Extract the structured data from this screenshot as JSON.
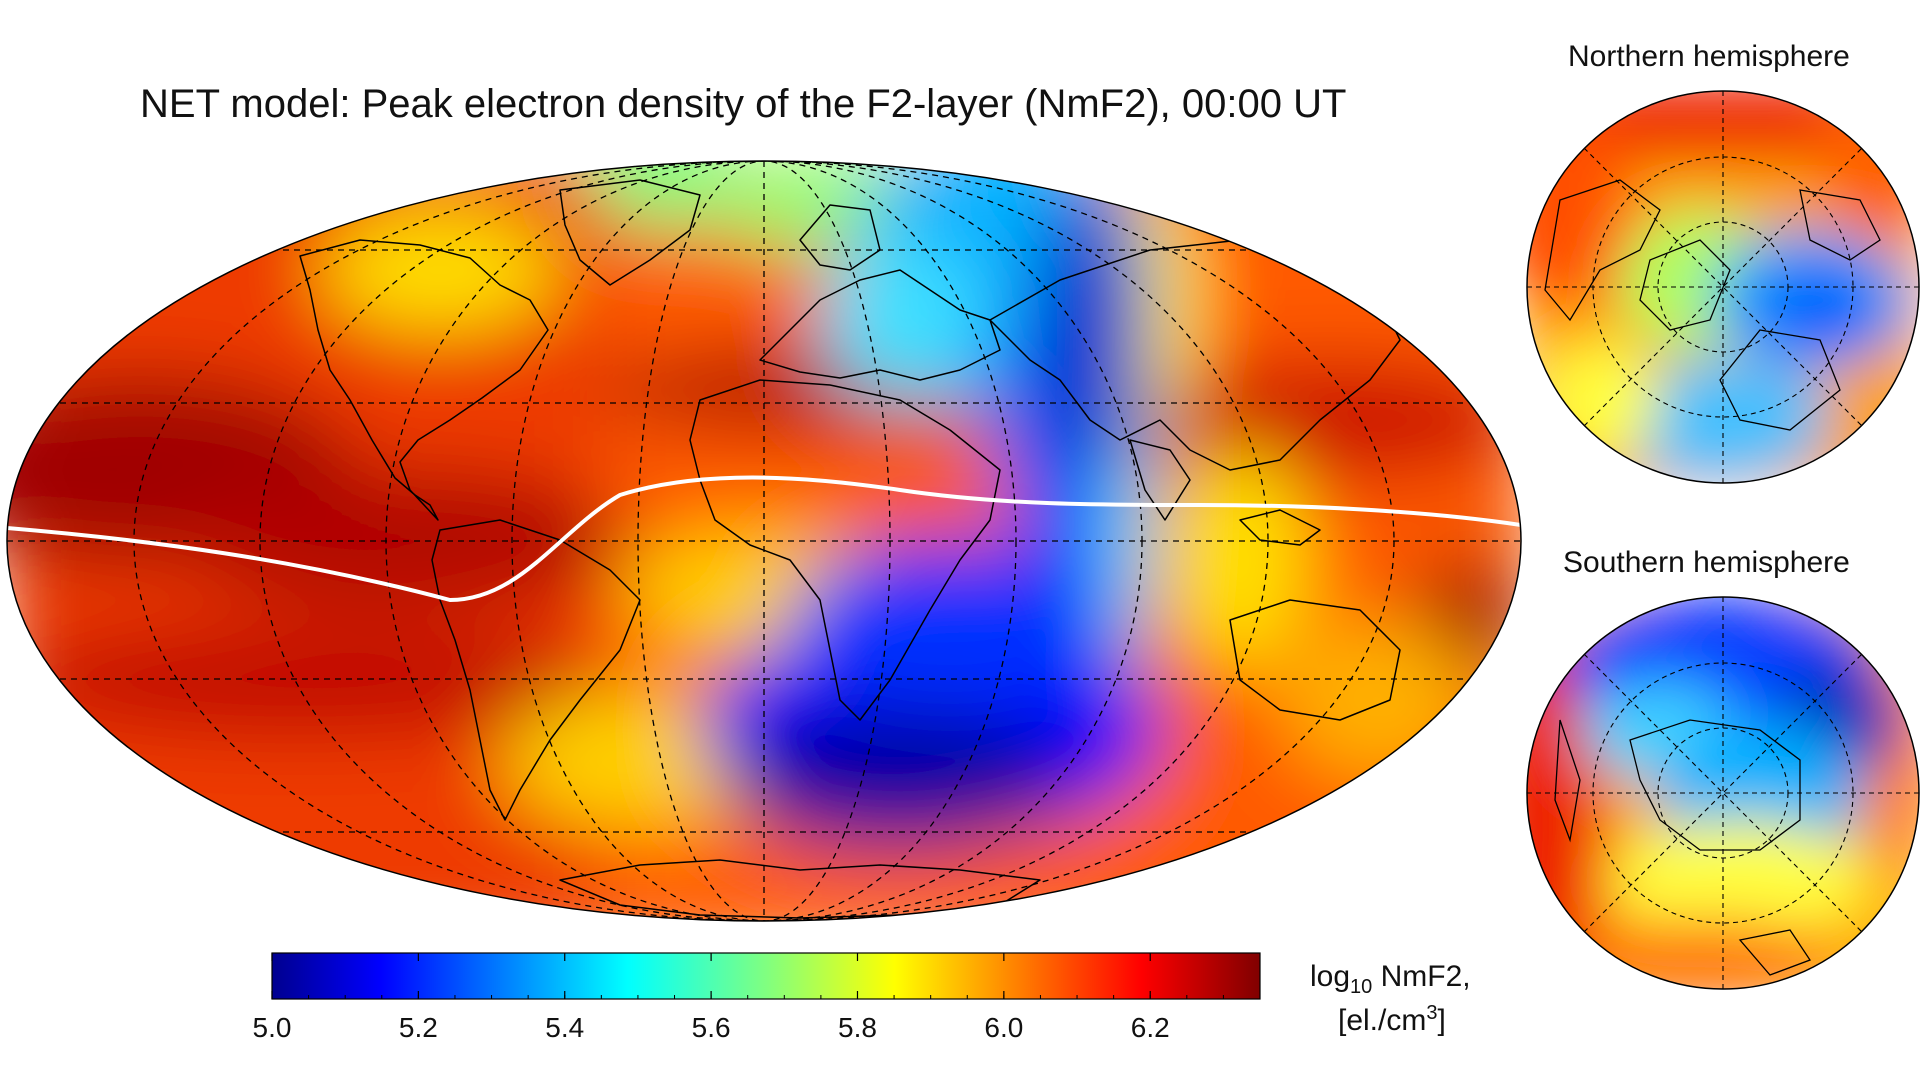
{
  "title": "NET model: Peak electron density of the F2-layer (NmF2), 00:00 UT",
  "insets": {
    "north": "Northern hemisphere",
    "south": "Southern hemisphere"
  },
  "colorbar": {
    "colormap": "jet",
    "min": 5.0,
    "max": 6.35,
    "ticks": [
      "5.0",
      "5.2",
      "5.4",
      "5.6",
      "5.8",
      "6.0",
      "6.2"
    ],
    "label_line1_prefix": "log",
    "label_line1_sub": "10",
    "label_line1_suffix": " NmF2,",
    "label_line2_prefix": "[el./cm",
    "label_line2_sup": "3",
    "label_line2_suffix": "]"
  },
  "colors": {
    "dip_equator": "#ffffff",
    "coastline": "#000000",
    "graticule": "#000000"
  },
  "map": {
    "projection": "Mollweide",
    "features": [
      "log10 NmF2 field",
      "coastlines",
      "graticule (dashed)",
      "magnetic dip equator (white line)"
    ]
  }
}
